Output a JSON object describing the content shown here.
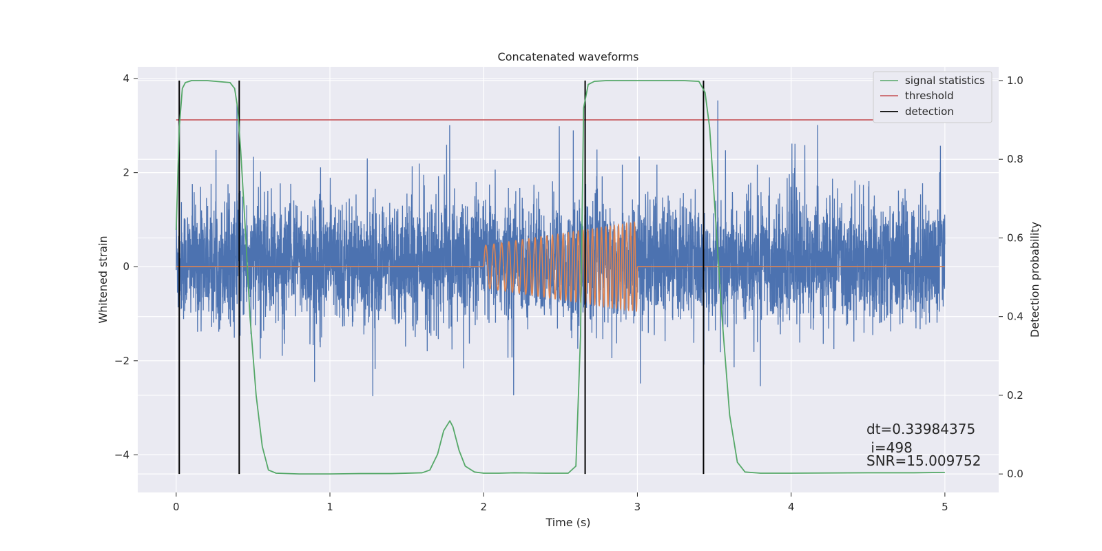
{
  "chart_data": {
    "type": "line",
    "title": "Concatenated waveforms",
    "xlabel": "Time (s)",
    "ylabel": "Whitened strain",
    "ylabel_right": "Detection probability",
    "xlim": [
      -0.25,
      5.35
    ],
    "ylim": [
      -4.8,
      4.25
    ],
    "ylim_right": [
      -0.047,
      1.035
    ],
    "xticks": [
      0,
      1,
      2,
      3,
      4,
      5
    ],
    "yticks": [
      4,
      2,
      0,
      -2,
      -4
    ],
    "yticks_right": [
      1.0,
      0.8,
      0.6,
      0.4,
      0.2,
      0.0
    ],
    "xtick_labels": [
      "0",
      "1",
      "2",
      "3",
      "4",
      "5"
    ],
    "ytick_labels": [
      "4",
      "2",
      "0",
      "−2",
      "−4"
    ],
    "ytick_labels_right": [
      "1.0",
      "0.8",
      "0.6",
      "0.4",
      "0.2",
      "0.0"
    ],
    "grid": true,
    "legend_position": "top-right",
    "colors": {
      "strain": "#4c72b0",
      "template": "#dd8452",
      "signal_statistics": "#55a868",
      "threshold": "#c44e52",
      "detection": "#000000",
      "background": "#eaeaf2",
      "grid": "#ffffff"
    },
    "series": [
      {
        "name": "signal statistics",
        "axis": "right",
        "x": [
          0.0,
          0.02,
          0.04,
          0.06,
          0.1,
          0.2,
          0.35,
          0.38,
          0.4,
          0.42,
          0.45,
          0.48,
          0.52,
          0.56,
          0.6,
          0.65,
          0.8,
          1.0,
          1.2,
          1.4,
          1.6,
          1.65,
          1.7,
          1.74,
          1.78,
          1.8,
          1.84,
          1.88,
          1.94,
          2.0,
          2.1,
          2.2,
          2.4,
          2.55,
          2.6,
          2.63,
          2.65,
          2.68,
          2.72,
          2.8,
          3.0,
          3.3,
          3.4,
          3.44,
          3.47,
          3.5,
          3.55,
          3.6,
          3.65,
          3.7,
          3.8,
          4.0,
          4.5,
          4.8,
          5.0
        ],
        "values": [
          0.62,
          0.88,
          0.98,
          0.995,
          1.0,
          1.0,
          0.995,
          0.98,
          0.93,
          0.82,
          0.62,
          0.4,
          0.2,
          0.07,
          0.01,
          0.002,
          0.0,
          0.0,
          0.001,
          0.001,
          0.003,
          0.01,
          0.05,
          0.11,
          0.135,
          0.12,
          0.06,
          0.02,
          0.005,
          0.002,
          0.002,
          0.003,
          0.002,
          0.002,
          0.02,
          0.35,
          0.93,
          0.99,
          0.998,
          1.0,
          1.0,
          1.0,
          0.998,
          0.97,
          0.88,
          0.7,
          0.4,
          0.15,
          0.03,
          0.005,
          0.002,
          0.002,
          0.003,
          0.003,
          0.004
        ]
      },
      {
        "name": "threshold",
        "axis": "right",
        "x": [
          0.0,
          5.1
        ],
        "values": [
          0.9,
          0.9
        ]
      },
      {
        "name": "detection",
        "axis": "right",
        "x": [
          0.02,
          0.41,
          2.66,
          3.43
        ],
        "vlines_range": [
          0.0,
          1.0
        ]
      }
    ],
    "legend": [
      "signal statistics",
      "threshold",
      "detection"
    ],
    "annotations": [
      "dt=0.33984375",
      " i=498",
      "SNR=15.009752"
    ]
  }
}
